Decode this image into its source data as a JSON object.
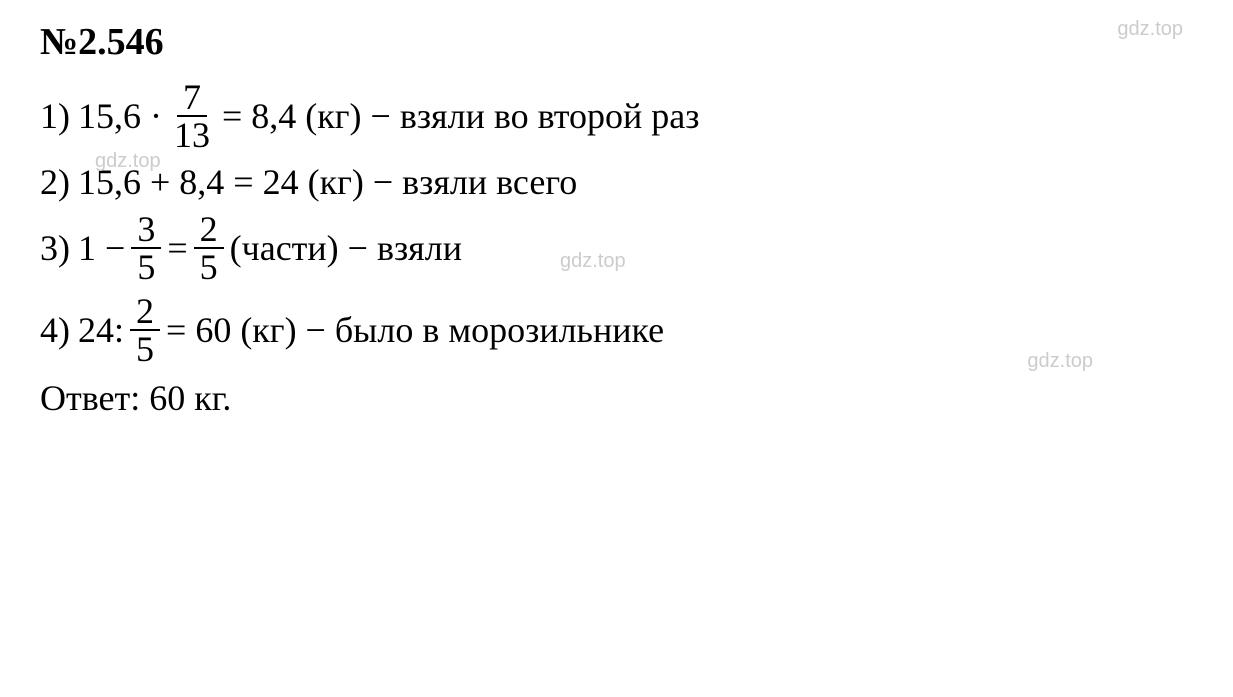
{
  "problem_number": "№2.546",
  "watermark_text": "gdz.top",
  "steps": [
    {
      "index": "1)",
      "before_fraction": "15,6 · ",
      "fraction": {
        "num": "7",
        "den": "13"
      },
      "after_fraction": " = 8,4 (кг) − взяли во второй раз"
    },
    {
      "index": "2)",
      "text": "15,6 + 8,4 = 24 (кг) − взяли всего"
    },
    {
      "index": "3)",
      "before_fraction": "1 − ",
      "fraction": {
        "num": "3",
        "den": "5"
      },
      "mid_text": " = ",
      "fraction2": {
        "num": "2",
        "den": "5"
      },
      "after_fraction": " (части) − взяли"
    },
    {
      "index": "4)",
      "before_fraction": "24: ",
      "fraction": {
        "num": "2",
        "den": "5"
      },
      "after_fraction": " = 60 (кг) − было в морозильнике"
    }
  ],
  "answer": "Ответ: 60 кг.",
  "text_color": "#000000",
  "watermark_color": "#cccccc",
  "background_color": "#ffffff",
  "font_family": "Times New Roman",
  "font_size_main": 36,
  "font_size_title": 38,
  "font_size_watermark": 20
}
